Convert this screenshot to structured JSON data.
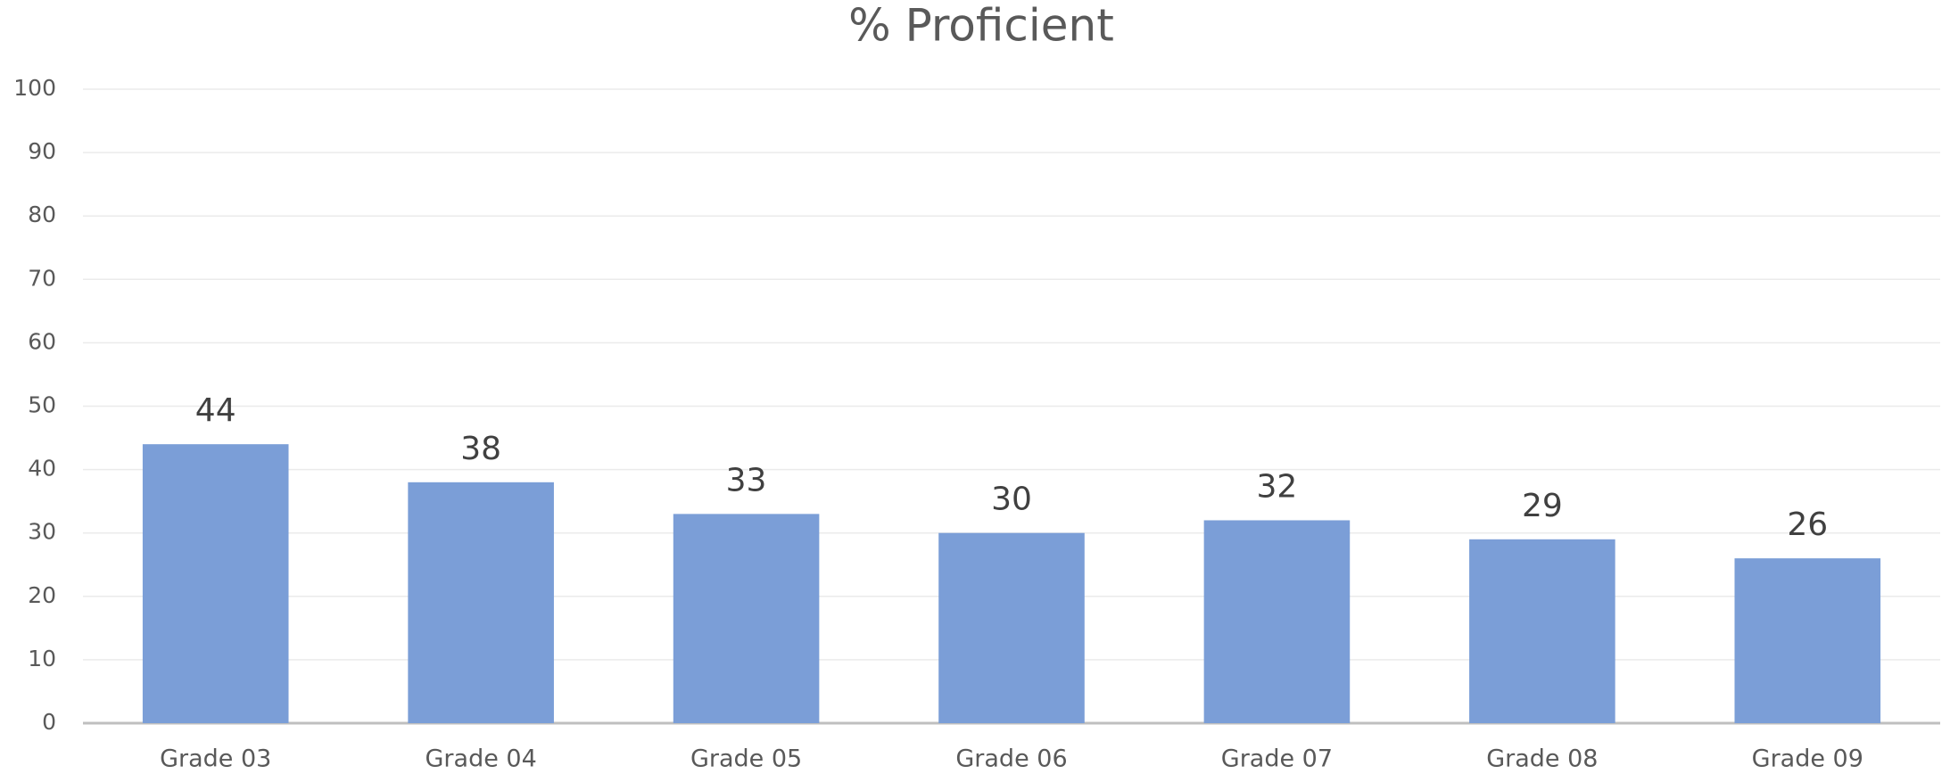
{
  "chart_data": {
    "type": "bar",
    "title": "% Proficient",
    "categories": [
      "Grade 03",
      "Grade 04",
      "Grade 05",
      "Grade 06",
      "Grade 07",
      "Grade 08",
      "Grade 09"
    ],
    "values": [
      44,
      38,
      33,
      30,
      32,
      29,
      26
    ],
    "color": "#7b9ed7",
    "ylim": [
      0,
      100
    ],
    "yticks": [
      0,
      10,
      20,
      30,
      40,
      50,
      60,
      70,
      80,
      90,
      100
    ],
    "grid": true,
    "data_labels": true
  }
}
